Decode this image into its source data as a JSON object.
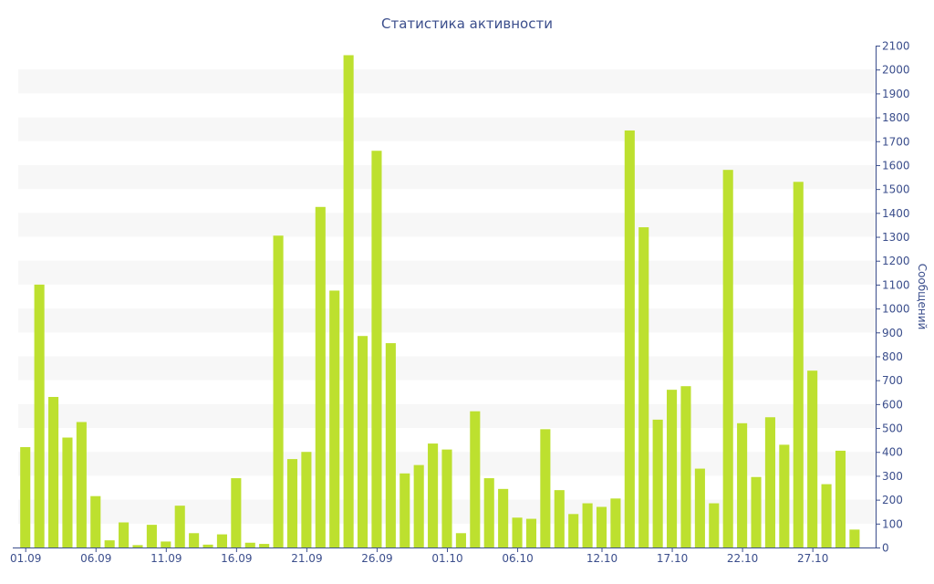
{
  "chart_data": {
    "type": "bar",
    "title": "Статистика активности",
    "xlabel": "",
    "ylabel": "Сообщений",
    "ylim": [
      0,
      2100
    ],
    "y_ticks": [
      0,
      100,
      200,
      300,
      400,
      500,
      600,
      700,
      800,
      900,
      1000,
      1100,
      1200,
      1300,
      1400,
      1500,
      1600,
      1700,
      1800,
      1900,
      2000,
      2100
    ],
    "y_axis_side": "right",
    "grid": "alternating horizontal bands",
    "legend": "none",
    "x_tick_labels": [
      "01.09",
      "06.09",
      "11.09",
      "16.09",
      "21.09",
      "26.09",
      "01.10",
      "06.10",
      "12.10",
      "17.10",
      "22.10",
      "27.10"
    ],
    "x_tick_label_categories": [
      "01.09",
      "06.09",
      "11.09",
      "16.09",
      "21.09",
      "26.09",
      "01.10",
      "06.10",
      "12.10",
      "17.10",
      "22.10",
      "27.10"
    ],
    "categories": [
      "01.09",
      "02.09",
      "03.09",
      "04.09",
      "05.09",
      "06.09",
      "07.09",
      "08.09",
      "09.09",
      "10.09",
      "11.09",
      "12.09",
      "13.09",
      "14.09",
      "15.09",
      "16.09",
      "17.09",
      "18.09",
      "19.09",
      "20.09",
      "21.09",
      "22.09",
      "23.09",
      "24.09",
      "25.09",
      "26.09",
      "27.09",
      "28.09",
      "29.09",
      "30.09",
      "01.10",
      "02.10",
      "03.10",
      "04.10",
      "05.10",
      "06.10",
      "07.10",
      "08.10",
      "09.10",
      "10.10",
      "11.10",
      "12.10",
      "13.10",
      "14.10",
      "15.10",
      "16.10",
      "17.10",
      "18.10",
      "19.10",
      "20.10",
      "21.10",
      "22.10",
      "23.10",
      "24.10",
      "25.10",
      "26.10",
      "27.10",
      "28.10",
      "29.10",
      "30.10",
      "31.10"
    ],
    "values": [
      420,
      1100,
      630,
      460,
      525,
      215,
      30,
      105,
      10,
      95,
      25,
      175,
      60,
      12,
      55,
      290,
      20,
      15,
      1305,
      370,
      400,
      1425,
      1075,
      2060,
      885,
      1660,
      855,
      310,
      345,
      435,
      410,
      60,
      570,
      290,
      245,
      125,
      120,
      495,
      240,
      140,
      185,
      170,
      205,
      1745,
      1340,
      535,
      660,
      675,
      330,
      185,
      1580,
      520,
      295,
      545,
      430,
      1530,
      740,
      265,
      405,
      75,
      0
    ],
    "colors": {
      "bar": "#bde02f",
      "axis": "#3b4e8c",
      "text": "#3b4e8c",
      "band": "#f7f7f7",
      "background": "#ffffff"
    }
  }
}
